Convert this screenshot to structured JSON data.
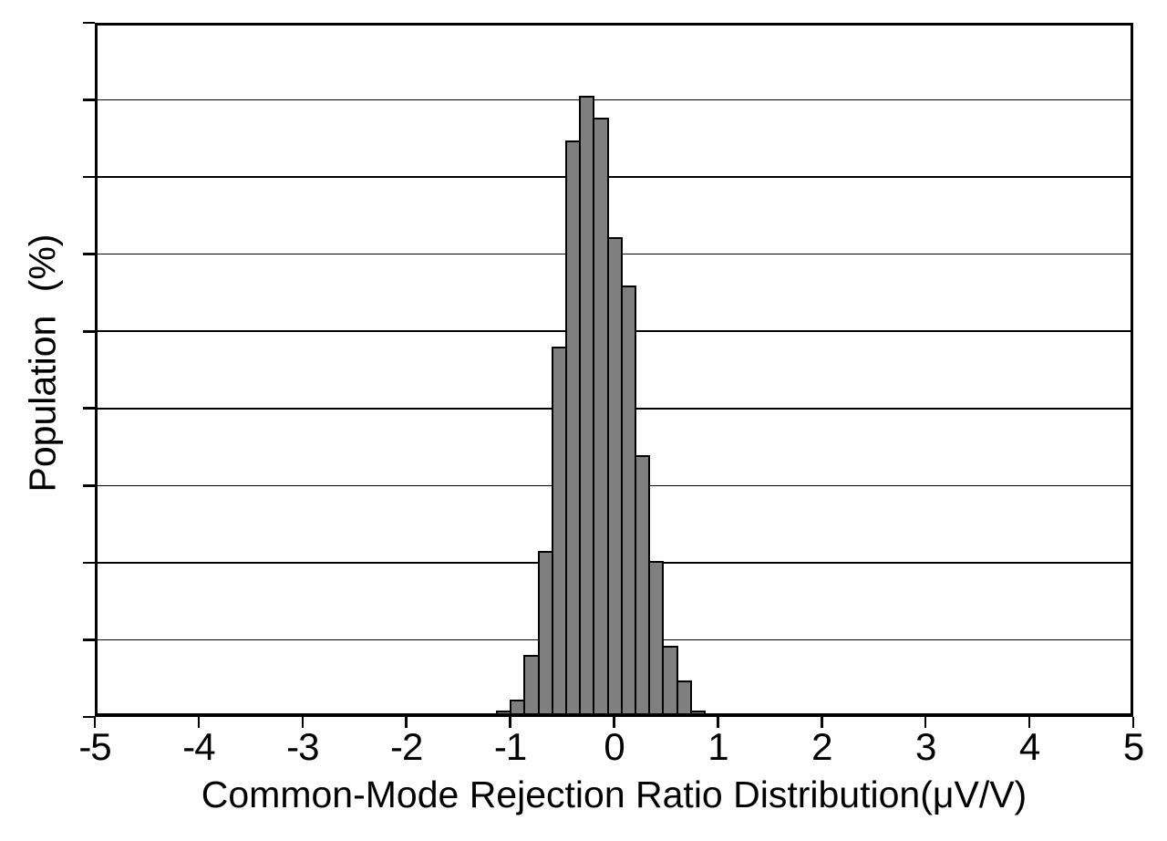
{
  "chart_data": {
    "type": "bar",
    "subtype": "histogram",
    "title": "",
    "xlabel": "Common-Mode Rejection Ratio Distribution(μV/V)",
    "ylabel": "Population (%)",
    "xlim": [
      -5,
      5
    ],
    "x_tick_labels": [
      "-5",
      "-4",
      "-3",
      "-2",
      "-1",
      "0",
      "1",
      "2",
      "3",
      "4",
      "5"
    ],
    "y_axis": {
      "tick_labels_shown": false,
      "gridline_divisions": 9,
      "pct_per_division": 2,
      "ylim_pct": [
        0,
        18
      ]
    },
    "grid": "horizontal",
    "legend": "none",
    "histogram": {
      "bin_start": -1.128,
      "bin_width": 0.1335,
      "bin_count": 15,
      "values_pct": [
        0.17,
        0.45,
        1.6,
        4.3,
        9.6,
        14.95,
        16.1,
        15.55,
        12.45,
        11.2,
        6.8,
        4.05,
        1.85,
        0.95,
        0.17
      ]
    },
    "colors": {
      "bar_fill": "#7f7f7f",
      "bar_edge": "#000000",
      "axis": "#000000",
      "gridline": "#000000",
      "background": "#ffffff"
    }
  }
}
